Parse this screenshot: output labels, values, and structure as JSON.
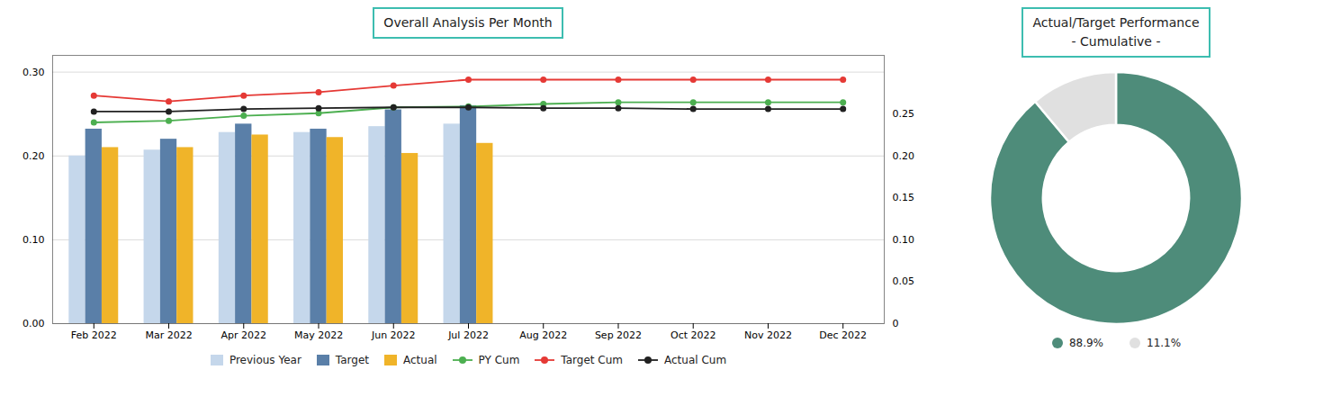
{
  "chart_data": [
    {
      "type": "bar",
      "title": "Overall Analysis Per Month",
      "categories": [
        "Feb 2022",
        "Mar 2022",
        "Apr 2022",
        "May 2022",
        "Jun 2022",
        "Jul 2022",
        "Aug 2022",
        "Sep 2022",
        "Oct 2022",
        "Nov 2022",
        "Dec 2022"
      ],
      "series": [
        {
          "name": "Previous Year",
          "type": "bar",
          "color": "#c5d7eb",
          "values": [
            0.2,
            0.207,
            0.228,
            0.228,
            0.235,
            0.238,
            null,
            null,
            null,
            null,
            null
          ]
        },
        {
          "name": "Target",
          "type": "bar",
          "color": "#5a7fa8",
          "values": [
            0.232,
            0.22,
            0.238,
            0.232,
            0.255,
            0.26,
            null,
            null,
            null,
            null,
            null
          ]
        },
        {
          "name": "Actual",
          "type": "bar",
          "color": "#f0b429",
          "values": [
            0.21,
            0.21,
            0.225,
            0.222,
            0.203,
            0.215,
            null,
            null,
            null,
            null,
            null
          ]
        },
        {
          "name": "PY Cum",
          "type": "line",
          "color": "#4caf50",
          "marker": "circle",
          "values": [
            0.24,
            0.242,
            0.248,
            0.251,
            0.258,
            0.259,
            0.262,
            0.264,
            0.264,
            0.264,
            0.264
          ]
        },
        {
          "name": "Target Cum",
          "type": "line",
          "color": "#e53935",
          "marker": "circle",
          "values": [
            0.272,
            0.265,
            0.272,
            0.276,
            0.284,
            0.291,
            0.291,
            0.291,
            0.291,
            0.291,
            0.291
          ]
        },
        {
          "name": "Actual Cum",
          "type": "line",
          "color": "#212121",
          "marker": "circle",
          "values": [
            0.253,
            0.253,
            0.256,
            0.257,
            0.258,
            0.258,
            0.257,
            0.257,
            0.256,
            0.256,
            0.256
          ]
        }
      ],
      "ylim": [
        0.0,
        0.32
      ],
      "yticks": [
        {
          "value": 0,
          "label": "0.00"
        },
        {
          "value": 0.1,
          "label": "0.10"
        },
        {
          "value": 0.2,
          "label": "0.20"
        },
        {
          "value": 0.3,
          "label": "0.30"
        }
      ],
      "y2lim": [
        0,
        0.32
      ],
      "y2ticks": [
        0,
        0.05,
        {
          "value": 0.1,
          "label": "0.10"
        },
        0.15,
        {
          "value": 0.2,
          "label": "0.20"
        },
        0.25
      ],
      "grid": true,
      "legend": "bottom"
    },
    {
      "type": "donut",
      "title": "Actual/Target Performance\n- Cumulative -",
      "categories": [
        "88.9%",
        "11.1%"
      ],
      "values": [
        88.9,
        11.1
      ],
      "colors": [
        "#4e8c7a",
        "#e0e0e0"
      ],
      "legend": "bottom"
    }
  ]
}
